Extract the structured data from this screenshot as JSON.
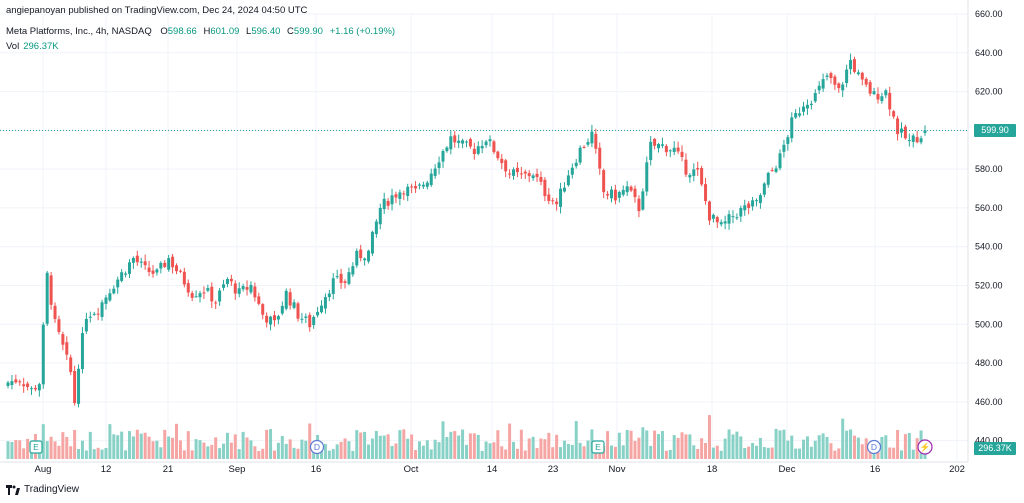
{
  "header": {
    "text": "angiepanoyan published on TradingView.com, Dec 24, 2024 04:50 UTC"
  },
  "legend": {
    "symbol": "Meta Platforms, Inc., 4h, NASDAQ",
    "o_label": "O",
    "o": "598.66",
    "h_label": "H",
    "h": "601.09",
    "l_label": "L",
    "l": "596.40",
    "c_label": "C",
    "c": "599.90",
    "change": "+1.16 (+0.19%)"
  },
  "volume": {
    "label": "Vol",
    "value": "296.37K"
  },
  "footer": {
    "brand": "TradingView"
  },
  "tags": {
    "last_price": "599.90",
    "last_volume": "296.37K"
  },
  "colors": {
    "up": "#26a69a",
    "down": "#ef5350",
    "vol_up": "#88d1c6",
    "vol_down": "#f5a5a3",
    "grid": "#f0f3fa",
    "last_line": "#26a69a"
  },
  "events": [
    {
      "icon": "earnings-icon",
      "letter": "E"
    },
    {
      "icon": "dividend-icon",
      "letter": "D"
    },
    {
      "icon": "earnings-icon",
      "letter": "E"
    },
    {
      "icon": "dividend-icon",
      "letter": "D"
    },
    {
      "icon": "lightning-icon",
      "letter": "⚡"
    }
  ],
  "chart_data": {
    "type": "candlestick",
    "title": "Meta Platforms, Inc., 4h, NASDAQ",
    "ylim": [
      430,
      660
    ],
    "y_ticks": [
      440,
      460,
      480,
      500,
      520,
      540,
      560,
      580,
      600,
      620,
      640,
      660
    ],
    "x_tick_labels": [
      "Aug",
      "12",
      "21",
      "Sep",
      "16",
      "Oct",
      "14",
      "23",
      "Nov",
      "18",
      "Dec",
      "16",
      "202"
    ],
    "last_price": 599.9,
    "grid": true,
    "segments": [
      [
        0,
        470,
        468
      ],
      [
        3,
        472
      ],
      [
        6,
        466
      ],
      [
        8,
        470
      ],
      [
        10,
        525
      ],
      [
        12,
        500
      ],
      [
        14,
        488
      ],
      [
        16,
        475
      ],
      [
        17,
        460
      ],
      [
        18,
        480
      ],
      [
        20,
        505
      ],
      [
        23,
        508
      ],
      [
        26,
        518
      ],
      [
        29,
        526
      ],
      [
        32,
        534
      ],
      [
        35,
        528
      ],
      [
        38,
        526
      ],
      [
        41,
        534
      ],
      [
        44,
        525
      ],
      [
        47,
        516
      ],
      [
        50,
        518
      ],
      [
        53,
        512
      ],
      [
        56,
        523
      ],
      [
        59,
        516
      ],
      [
        62,
        520
      ],
      [
        65,
        505
      ],
      [
        68,
        500
      ],
      [
        71,
        516
      ],
      [
        74,
        505
      ],
      [
        77,
        500
      ],
      [
        80,
        512
      ],
      [
        83,
        522
      ],
      [
        86,
        522
      ],
      [
        89,
        535
      ],
      [
        92,
        537
      ],
      [
        95,
        560
      ],
      [
        98,
        566
      ],
      [
        101,
        570
      ],
      [
        104,
        568
      ],
      [
        107,
        575
      ],
      [
        110,
        586
      ],
      [
        113,
        596
      ],
      [
        116,
        592
      ],
      [
        119,
        590
      ],
      [
        122,
        596
      ],
      [
        125,
        587
      ],
      [
        128,
        578
      ],
      [
        131,
        576
      ],
      [
        134,
        578
      ],
      [
        137,
        568
      ],
      [
        140,
        562
      ],
      [
        143,
        578
      ],
      [
        146,
        590
      ],
      [
        149,
        598
      ],
      [
        152,
        568
      ],
      [
        155,
        566
      ],
      [
        158,
        570
      ],
      [
        161,
        560
      ],
      [
        164,
        592
      ],
      [
        167,
        592
      ],
      [
        170,
        590
      ],
      [
        173,
        580
      ],
      [
        176,
        578
      ],
      [
        179,
        556
      ],
      [
        182,
        550
      ],
      [
        185,
        556
      ],
      [
        188,
        560
      ],
      [
        191,
        562
      ],
      [
        194,
        576
      ],
      [
        197,
        586
      ],
      [
        200,
        604
      ],
      [
        203,
        614
      ],
      [
        206,
        618
      ],
      [
        209,
        628
      ],
      [
        212,
        620
      ],
      [
        215,
        636
      ],
      [
        218,
        624
      ],
      [
        221,
        618
      ],
      [
        224,
        620
      ],
      [
        227,
        600
      ],
      [
        230,
        594
      ],
      [
        233,
        598
      ],
      [
        234,
        599.9
      ]
    ]
  }
}
